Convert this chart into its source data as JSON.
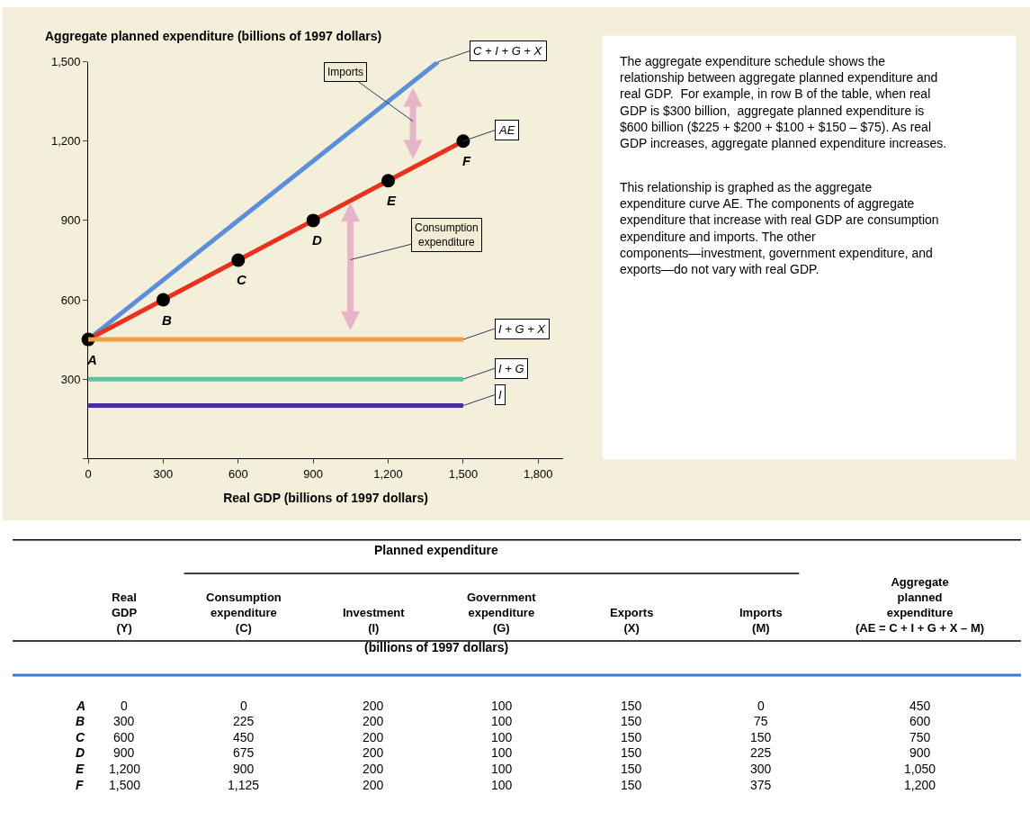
{
  "chart_data": {
    "type": "line",
    "ylabel": "Aggregate planned expenditure (billions of 1997 dollars)",
    "xlabel": "Real GDP (billions of 1997 dollars)",
    "xlim": [
      0,
      1900
    ],
    "xticks": [
      0,
      300,
      600,
      900,
      {
        "value": 1200,
        "label": "1,200"
      },
      {
        "value": 1500,
        "label": "1,500"
      },
      {
        "value": 1800,
        "label": "1,800"
      }
    ],
    "ylim": [
      0,
      1500
    ],
    "yticks": [
      {
        "value": 0,
        "label": null
      },
      300,
      600,
      900,
      {
        "value": 1200,
        "label": "1,200"
      },
      {
        "value": 1500,
        "label": "1,500"
      }
    ],
    "series": [
      {
        "name": "C + I + G + X",
        "color": "#5b8fd9",
        "x": [
          0,
          1400
        ],
        "values": [
          450,
          1500
        ]
      },
      {
        "name": "AE",
        "color": "#e8321e",
        "x": [
          0,
          300,
          600,
          900,
          1200,
          1500
        ],
        "values": [
          450,
          600,
          750,
          900,
          1050,
          1200
        ],
        "marker": "circle"
      },
      {
        "name": "I + G + X",
        "color": "#f0a040",
        "x": [
          0,
          1500
        ],
        "values": [
          450,
          450
        ]
      },
      {
        "name": "I + G",
        "color": "#5cc3a0",
        "x": [
          0,
          1500
        ],
        "values": [
          300,
          300
        ]
      },
      {
        "name": "I",
        "color": "#4a2c9a",
        "x": [
          0,
          1500
        ],
        "values": [
          200,
          200
        ]
      }
    ],
    "annotations": [
      {
        "text": "A",
        "x": 0,
        "y": 450
      },
      {
        "text": "B",
        "x": 300,
        "y": 600
      },
      {
        "text": "C",
        "x": 600,
        "y": 750
      },
      {
        "text": "D",
        "x": 900,
        "y": 900
      },
      {
        "text": "E",
        "x": 1200,
        "y": 1050
      },
      {
        "text": "F",
        "x": 1500,
        "y": 1200
      },
      "Imports",
      "Consumption\nexpenditure",
      "The aggregate expenditure schedule shows the relationship between aggregate planned expenditure and real GDP.  For example, in row B of the table, when real GDP is $300 billion,  aggregate planned expenditure is $600 billion ($225 + $200 + $100 + $150 – $75). As real GDP increases, aggregate planned expenditure increases.",
      "This relationship is graphed as the aggregate expenditure curve AE. The components of aggregate expenditure that increase with real GDP are consumption expenditure and imports. The other components—investment, government expenditure, and exports—do not vary with real GDP.",
      "Planned expenditure",
      "\tReal\nGDP\n(Y)\tConsumption\nexpenditure\n(C)\tInvestment\n(I)\tGovernment\nexpenditure\n(G)\tExports\n(X)\tImports\n(M)\tAggregate\nplanned\nexpenditure\n(AE = C + I + G + X – M)",
      "(billions of 1997 dollars)",
      "A\t0\t0\t200\t100\t150\t0\t450",
      "B\t300\t225\t200\t100\t150\t75\t600",
      "C\t600\t450\t200\t100\t150\t150\t750",
      "D\t900\t675\t200\t100\t150\t225\t900",
      "E\t1,200\t900\t200\t100\t150\t300\t1,050",
      "F\t1,500\t1,125\t200\t100\t150\t375\t1,200"
    ]
  }
}
